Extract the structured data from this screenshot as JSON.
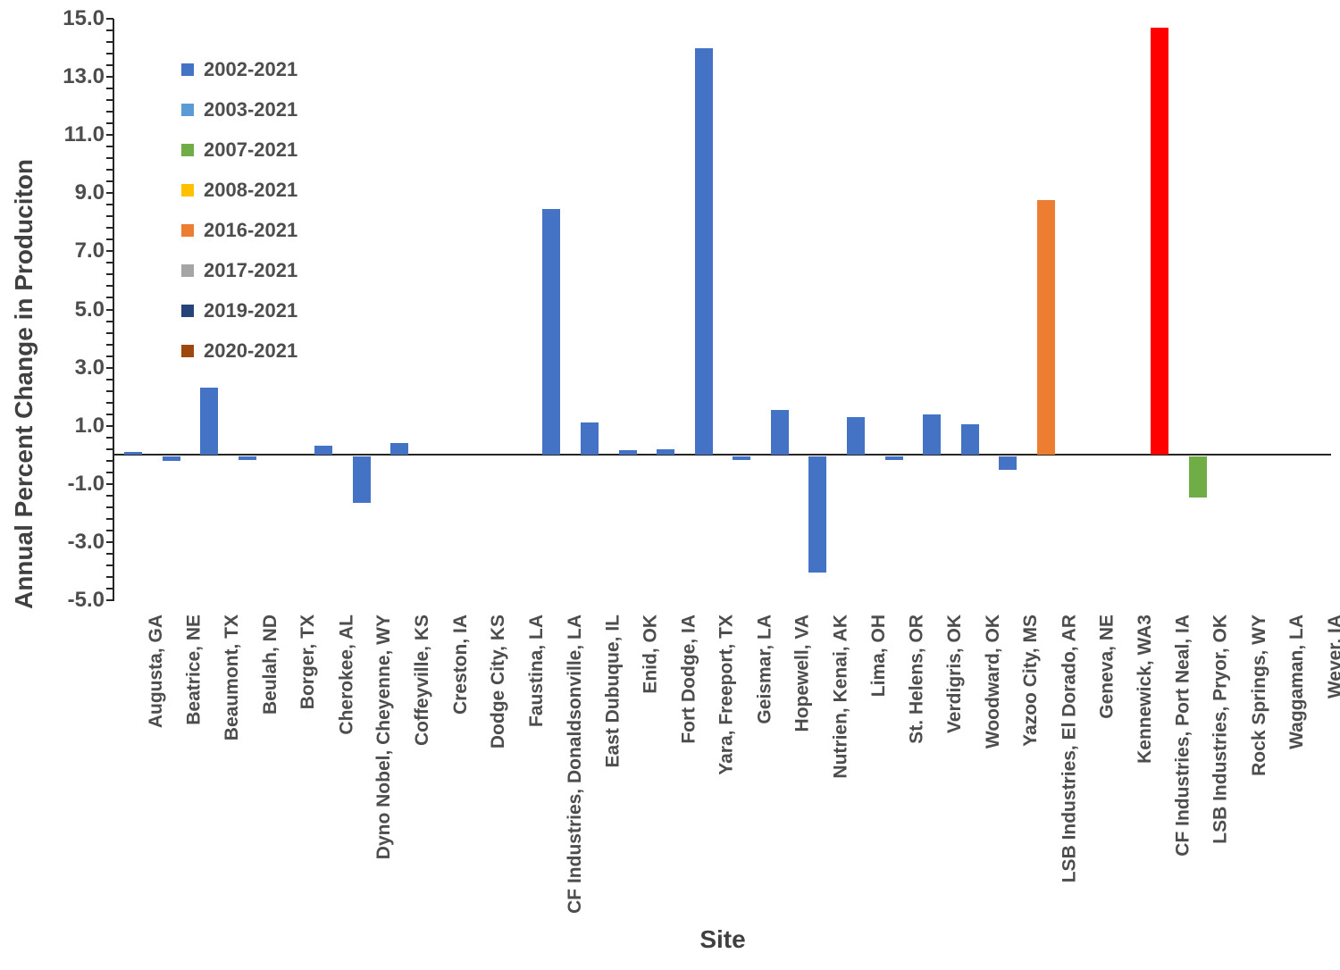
{
  "colors": {
    "background": "#FFFFFF",
    "axis_line": "#262626",
    "tick_text": "#4d4d4d",
    "title_text": "#404040",
    "default_bar": "#4472C4",
    "highlight_red": "#FF0000",
    "highlight_orange": "#ED7D31",
    "highlight_green": "#70AD47"
  },
  "chart_data": {
    "type": "bar",
    "title": "",
    "xlabel": "Site",
    "ylabel": "Annual Percent Change in Produciton",
    "ylim": [
      -5.0,
      15.0
    ],
    "ytick_step": 2.0,
    "minor_tick_step": 0.4,
    "grid": false,
    "legend_position": "top-left-inside",
    "yticks": [
      "15.0",
      "13.0",
      "11.0",
      "9.0",
      "7.0",
      "5.0",
      "3.0",
      "1.0",
      "-1.0",
      "-3.0",
      "-5.0"
    ],
    "legend": [
      {
        "label": "2002-2021",
        "color": "#4472C4"
      },
      {
        "label": "2003-2021",
        "color": "#5B9BD5"
      },
      {
        "label": "2007-2021",
        "color": "#70AD47"
      },
      {
        "label": "2008-2021",
        "color": "#FFC000"
      },
      {
        "label": "2016-2021",
        "color": "#ED7D31"
      },
      {
        "label": "2017-2021",
        "color": "#A5A5A5"
      },
      {
        "label": "2019-2021",
        "color": "#264478"
      },
      {
        "label": "2020-2021",
        "color": "#9E480E"
      }
    ],
    "categories": [
      "Augusta, GA",
      "Beatrice, NE",
      "Beaumont, TX",
      "Beulah, ND",
      "Borger, TX",
      "Cherokee, AL",
      "Dyno Nobel, Cheyenne, WY",
      "Coffeyville, KS",
      "Creston, IA",
      "Dodge City, KS",
      "Faustina, LA",
      "CF Industries, Donaldsonville, LA",
      "East Dubuque, IL",
      "Enid, OK",
      "Fort Dodge, IA",
      "Yara, Freeport, TX",
      "Geismar, LA",
      "Hopewell, VA",
      "Nutrien, Kenai, AK",
      "Lima, OH",
      "St. Helens, OR",
      "Verdigris, OK",
      "Woodward, OK",
      "Yazoo City, MS",
      "LSB Industries, El Dorado, AR",
      "Geneva, NE",
      "Kennewick, WA3",
      "CF Industries, Port Neal, IA",
      "LSB Industries, Pryor, OK",
      "Rock Springs, WY",
      "Waggaman, LA",
      "Wever, IA"
    ],
    "values": [
      0.1,
      -0.15,
      2.3,
      -0.1,
      0,
      0.3,
      -1.6,
      0.4,
      0,
      0,
      0,
      8.45,
      1.1,
      0.15,
      0.2,
      14.0,
      -0.1,
      1.55,
      -4.0,
      1.3,
      -0.1,
      1.4,
      1.05,
      -0.45,
      8.75,
      0,
      0,
      14.7,
      -1.4,
      0,
      0,
      0
    ],
    "bar_colors": [
      "#4472C4",
      "#4472C4",
      "#4472C4",
      "#4472C4",
      "#4472C4",
      "#4472C4",
      "#4472C4",
      "#4472C4",
      "#4472C4",
      "#4472C4",
      "#4472C4",
      "#4472C4",
      "#4472C4",
      "#4472C4",
      "#4472C4",
      "#4472C4",
      "#4472C4",
      "#4472C4",
      "#4472C4",
      "#4472C4",
      "#4472C4",
      "#4472C4",
      "#4472C4",
      "#4472C4",
      "#ED7D31",
      "#4472C4",
      "#4472C4",
      "#FF0000",
      "#70AD47",
      "#4472C4",
      "#4472C4",
      "#4472C4"
    ]
  }
}
